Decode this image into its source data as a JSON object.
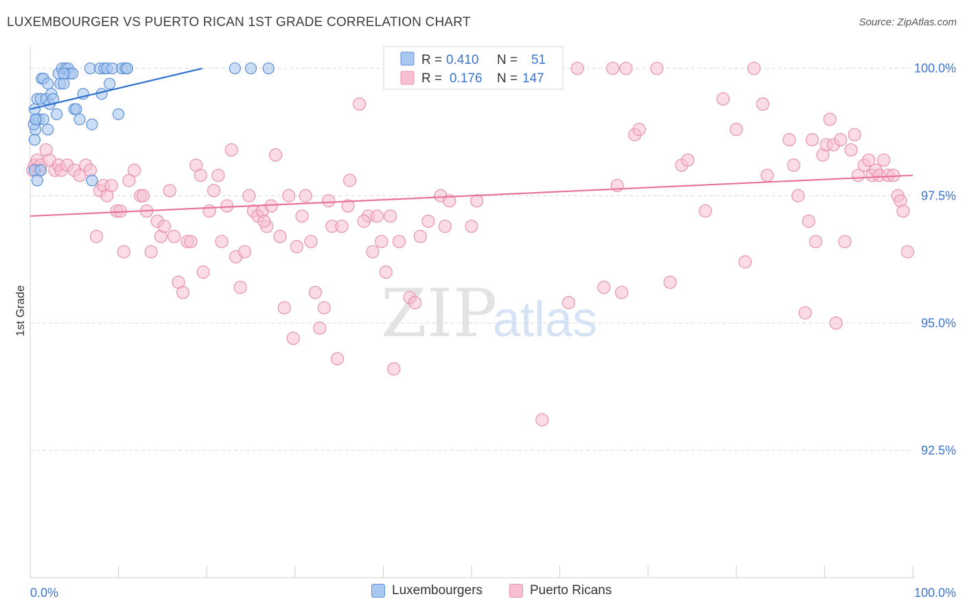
{
  "title": "LUXEMBOURGER VS PUERTO RICAN 1ST GRADE CORRELATION CHART",
  "source": "Source: ZipAtlas.com",
  "watermark": {
    "zip": "ZIP",
    "atlas": "atlas"
  },
  "legend_box": {
    "rows": [
      {
        "r_label": "R = ",
        "r_value": "0.410",
        "n_label": "N = ",
        "n_value": "51"
      },
      {
        "r_label": "R = ",
        "r_value": "0.176",
        "n_label": "N = ",
        "n_value": "147"
      }
    ]
  },
  "legend_bottom": [
    {
      "label": "Luxembourgers"
    },
    {
      "label": "Puerto Ricans"
    }
  ],
  "colors": {
    "blue_fill": "#a9c8f0",
    "blue_stroke": "#5b8fd6",
    "blue_line": "#2f6fd0",
    "pink_fill": "#f7c0d0",
    "pink_stroke": "#e891ad",
    "pink_line": "#e8739a",
    "value_text": "#3b74d1",
    "grid": "#d8d8d8"
  },
  "chart_data": {
    "type": "scatter",
    "title": "LUXEMBOURGER VS PUERTO RICAN 1ST GRADE CORRELATION CHART",
    "xlabel": "",
    "ylabel": "1st Grade",
    "xlim": [
      0,
      100
    ],
    "ylim": [
      90.0,
      100.4
    ],
    "x_tick_labels": [
      "0.0%",
      "100.0%"
    ],
    "y_ticks": [
      {
        "value": 100.0,
        "label": "100.0%"
      },
      {
        "value": 97.5,
        "label": "97.5%"
      },
      {
        "value": 95.0,
        "label": "95.0%"
      },
      {
        "value": 92.5,
        "label": "92.5%"
      }
    ],
    "grid": "horizontal dashed",
    "series": [
      {
        "name": "Luxembourgers",
        "color": "#5b8fd6",
        "trend": {
          "x": [
            0.0,
            19.5
          ],
          "y": [
            99.2,
            100.0
          ]
        },
        "points": [
          [
            0.5,
            98.6
          ],
          [
            0.6,
            98.8
          ],
          [
            0.4,
            98.9
          ],
          [
            0.7,
            99.0
          ],
          [
            0.5,
            99.2
          ],
          [
            0.8,
            99.4
          ],
          [
            1.0,
            99.0
          ],
          [
            1.2,
            99.4
          ],
          [
            1.3,
            99.8
          ],
          [
            1.5,
            99.8
          ],
          [
            1.8,
            99.4
          ],
          [
            2.0,
            99.7
          ],
          [
            2.2,
            99.3
          ],
          [
            2.4,
            99.5
          ],
          [
            2.6,
            99.4
          ],
          [
            3.0,
            99.1
          ],
          [
            3.2,
            99.9
          ],
          [
            3.4,
            99.7
          ],
          [
            3.6,
            100.0
          ],
          [
            3.8,
            99.7
          ],
          [
            4.0,
            100.0
          ],
          [
            4.3,
            100.0
          ],
          [
            4.5,
            99.9
          ],
          [
            4.8,
            99.9
          ],
          [
            5.0,
            99.2
          ],
          [
            5.2,
            99.2
          ],
          [
            5.6,
            99.0
          ],
          [
            6.0,
            99.5
          ],
          [
            6.8,
            100.0
          ],
          [
            7.0,
            98.9
          ],
          [
            7.9,
            100.0
          ],
          [
            8.1,
            99.5
          ],
          [
            8.4,
            100.0
          ],
          [
            8.7,
            100.0
          ],
          [
            9.0,
            99.7
          ],
          [
            9.3,
            100.0
          ],
          [
            10.0,
            99.1
          ],
          [
            10.4,
            100.0
          ],
          [
            10.8,
            100.0
          ],
          [
            11.0,
            100.0
          ],
          [
            23.2,
            100.0
          ],
          [
            25.0,
            100.0
          ],
          [
            27.0,
            100.0
          ],
          [
            0.5,
            98.0
          ],
          [
            0.8,
            97.8
          ],
          [
            1.2,
            98.0
          ],
          [
            2.0,
            98.8
          ],
          [
            7.0,
            97.8
          ],
          [
            1.5,
            99.0
          ],
          [
            0.6,
            99.0
          ],
          [
            3.8,
            99.9
          ]
        ]
      },
      {
        "name": "Puerto Ricans",
        "color": "#e891ad",
        "trend": {
          "x": [
            0.0,
            100.0
          ],
          "y": [
            97.1,
            97.9
          ]
        },
        "points": [
          [
            0.3,
            98.0
          ],
          [
            0.5,
            98.1
          ],
          [
            0.8,
            98.2
          ],
          [
            1.0,
            98.0
          ],
          [
            1.2,
            98.1
          ],
          [
            1.8,
            98.4
          ],
          [
            2.2,
            98.2
          ],
          [
            2.8,
            98.0
          ],
          [
            3.2,
            98.1
          ],
          [
            3.5,
            98.0
          ],
          [
            4.2,
            98.1
          ],
          [
            5.0,
            98.0
          ],
          [
            5.6,
            97.9
          ],
          [
            6.3,
            98.1
          ],
          [
            6.8,
            98.0
          ],
          [
            7.5,
            96.7
          ],
          [
            7.9,
            97.6
          ],
          [
            8.3,
            97.7
          ],
          [
            8.7,
            97.5
          ],
          [
            9.2,
            97.7
          ],
          [
            9.8,
            97.2
          ],
          [
            10.2,
            97.2
          ],
          [
            10.6,
            96.4
          ],
          [
            11.2,
            97.8
          ],
          [
            11.8,
            98.0
          ],
          [
            12.5,
            97.5
          ],
          [
            12.8,
            97.5
          ],
          [
            13.2,
            97.2
          ],
          [
            13.7,
            96.4
          ],
          [
            14.4,
            97.0
          ],
          [
            14.8,
            96.7
          ],
          [
            15.2,
            96.9
          ],
          [
            15.8,
            97.6
          ],
          [
            16.3,
            96.7
          ],
          [
            16.8,
            95.8
          ],
          [
            17.3,
            95.6
          ],
          [
            17.8,
            96.6
          ],
          [
            18.2,
            96.6
          ],
          [
            18.8,
            98.1
          ],
          [
            19.3,
            97.9
          ],
          [
            19.6,
            96.0
          ],
          [
            20.3,
            97.2
          ],
          [
            20.8,
            97.6
          ],
          [
            21.3,
            97.9
          ],
          [
            21.7,
            96.6
          ],
          [
            22.3,
            97.3
          ],
          [
            22.8,
            98.4
          ],
          [
            23.3,
            96.3
          ],
          [
            23.8,
            95.7
          ],
          [
            24.3,
            96.4
          ],
          [
            24.8,
            97.5
          ],
          [
            25.3,
            97.2
          ],
          [
            25.8,
            97.1
          ],
          [
            26.3,
            97.2
          ],
          [
            26.8,
            96.9
          ],
          [
            27.3,
            97.3
          ],
          [
            27.8,
            98.3
          ],
          [
            28.3,
            96.7
          ],
          [
            28.8,
            95.3
          ],
          [
            29.3,
            97.5
          ],
          [
            29.8,
            94.7
          ],
          [
            30.2,
            96.5
          ],
          [
            30.8,
            97.1
          ],
          [
            31.2,
            97.5
          ],
          [
            31.8,
            96.6
          ],
          [
            32.3,
            95.6
          ],
          [
            32.8,
            94.9
          ],
          [
            33.3,
            95.3
          ],
          [
            33.8,
            97.4
          ],
          [
            34.2,
            96.9
          ],
          [
            34.8,
            94.3
          ],
          [
            35.3,
            96.9
          ],
          [
            36.2,
            97.8
          ],
          [
            37.3,
            99.3
          ],
          [
            38.3,
            97.1
          ],
          [
            38.8,
            96.4
          ],
          [
            39.3,
            97.1
          ],
          [
            39.8,
            96.6
          ],
          [
            40.3,
            96.0
          ],
          [
            40.8,
            97.1
          ],
          [
            41.2,
            94.1
          ],
          [
            41.8,
            96.6
          ],
          [
            43.0,
            95.5
          ],
          [
            43.6,
            95.4
          ],
          [
            44.2,
            96.7
          ],
          [
            45.1,
            97.0
          ],
          [
            46.5,
            97.5
          ],
          [
            47.0,
            96.9
          ],
          [
            47.5,
            97.4
          ],
          [
            49.4,
            100.0
          ],
          [
            50.0,
            96.9
          ],
          [
            51.0,
            100.0
          ],
          [
            55.0,
            100.0
          ],
          [
            58.0,
            93.1
          ],
          [
            59.0,
            100.0
          ],
          [
            61.0,
            95.4
          ],
          [
            62.0,
            100.0
          ],
          [
            65.0,
            95.7
          ],
          [
            66.0,
            100.0
          ],
          [
            66.5,
            97.7
          ],
          [
            67.0,
            95.6
          ],
          [
            67.5,
            100.0
          ],
          [
            68.5,
            98.7
          ],
          [
            69.0,
            98.8
          ],
          [
            72.5,
            95.8
          ],
          [
            73.8,
            98.1
          ],
          [
            74.5,
            98.2
          ],
          [
            76.5,
            97.2
          ],
          [
            78.5,
            99.4
          ],
          [
            80.0,
            98.8
          ],
          [
            81.0,
            96.2
          ],
          [
            82.0,
            100.0
          ],
          [
            83.0,
            99.3
          ],
          [
            83.5,
            97.9
          ],
          [
            86.0,
            98.6
          ],
          [
            86.5,
            98.1
          ],
          [
            87.0,
            97.5
          ],
          [
            87.8,
            95.2
          ],
          [
            88.2,
            97.0
          ],
          [
            88.6,
            98.6
          ],
          [
            89.0,
            96.6
          ],
          [
            89.8,
            98.3
          ],
          [
            90.2,
            98.5
          ],
          [
            90.6,
            99.0
          ],
          [
            91.0,
            98.5
          ],
          [
            91.3,
            95.0
          ],
          [
            91.8,
            98.6
          ],
          [
            92.3,
            96.6
          ],
          [
            93.0,
            98.4
          ],
          [
            93.4,
            98.7
          ],
          [
            93.8,
            97.9
          ],
          [
            94.5,
            98.1
          ],
          [
            95.0,
            98.2
          ],
          [
            95.4,
            97.9
          ],
          [
            95.8,
            98.0
          ],
          [
            96.2,
            97.9
          ],
          [
            96.7,
            98.2
          ],
          [
            97.2,
            97.9
          ],
          [
            97.8,
            97.9
          ],
          [
            98.3,
            97.5
          ],
          [
            98.6,
            97.4
          ],
          [
            98.9,
            97.2
          ],
          [
            99.4,
            96.4
          ],
          [
            48.6,
            100.0
          ],
          [
            50.6,
            97.4
          ],
          [
            36.0,
            97.3
          ],
          [
            71.0,
            100.0
          ],
          [
            26.5,
            97.0
          ],
          [
            37.8,
            97.0
          ]
        ]
      }
    ]
  }
}
